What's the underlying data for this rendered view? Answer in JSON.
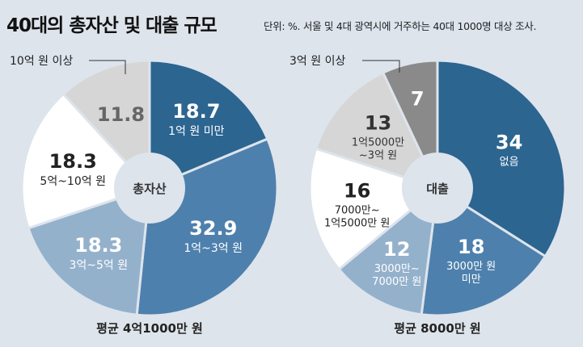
{
  "header": {
    "title": "40대의 총자산 및 대출 규모",
    "subtitle": "단위: %. 서울 및 4대 광역시에 거주하는 40대 1000명 대상 조사."
  },
  "chart_data": [
    {
      "type": "pie",
      "name": "총자산",
      "center_label": "총자산",
      "footer": "평균 4억1000만 원",
      "callout": "10억 원 이상",
      "slices": [
        {
          "value": 18.7,
          "value_label": "18.7",
          "label": [
            "1억 원 미만"
          ],
          "color": "#2c6590",
          "text_color": "#ffffff"
        },
        {
          "value": 32.9,
          "value_label": "32.9",
          "label": [
            "1억~3억 원"
          ],
          "color": "#4e80ad",
          "text_color": "#ffffff"
        },
        {
          "value": 18.3,
          "value_label": "18.3",
          "label": [
            "3억~5억 원"
          ],
          "color": "#94b1cc",
          "text_color": "#ffffff"
        },
        {
          "value": 18.3,
          "value_label": "18.3",
          "label": [
            "5억~10억 원"
          ],
          "color": "#ffffff",
          "text_color": "#222222"
        },
        {
          "value": 11.8,
          "value_label": "11.8",
          "label": [],
          "color": "#d6d6d6",
          "text_color": "#666666"
        }
      ]
    },
    {
      "type": "pie",
      "name": "대출",
      "center_label": "대출",
      "footer": "평균 8000만 원",
      "callout": "3억 원 이상",
      "slices": [
        {
          "value": 34,
          "value_label": "34",
          "label": [
            "없음"
          ],
          "color": "#2c6590",
          "text_color": "#ffffff"
        },
        {
          "value": 18,
          "value_label": "18",
          "label": [
            "3000만 원",
            "미만"
          ],
          "color": "#4e80ad",
          "text_color": "#ffffff"
        },
        {
          "value": 12,
          "value_label": "12",
          "label": [
            "3000만~",
            "7000만 원"
          ],
          "color": "#94b1cc",
          "text_color": "#ffffff"
        },
        {
          "value": 16,
          "value_label": "16",
          "label": [
            "7000만~",
            "1억5000만 원"
          ],
          "color": "#ffffff",
          "text_color": "#222222"
        },
        {
          "value": 13,
          "value_label": "13",
          "label": [
            "1억5000만",
            "~3억 원"
          ],
          "color": "#d6d6d6",
          "text_color": "#333333"
        },
        {
          "value": 7,
          "value_label": "7",
          "label": [],
          "color": "#8a8a8a",
          "text_color": "#ffffff"
        }
      ]
    }
  ]
}
